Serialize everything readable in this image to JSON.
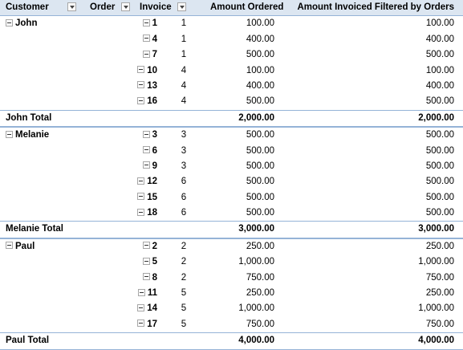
{
  "headers": {
    "customer": "Customer",
    "order": "Order",
    "invoice": "Invoice",
    "amount_ordered": "Amount Ordered",
    "amount_invoiced": "Amount Invoiced Filtered by Orders"
  },
  "groups": [
    {
      "customer": "John",
      "rows": [
        {
          "order": "1",
          "invoice": "1",
          "amount_ordered": "100.00",
          "amount_invoiced": "100.00"
        },
        {
          "order": "4",
          "invoice": "1",
          "amount_ordered": "400.00",
          "amount_invoiced": "400.00"
        },
        {
          "order": "7",
          "invoice": "1",
          "amount_ordered": "500.00",
          "amount_invoiced": "500.00"
        },
        {
          "order": "10",
          "invoice": "4",
          "amount_ordered": "100.00",
          "amount_invoiced": "100.00"
        },
        {
          "order": "13",
          "invoice": "4",
          "amount_ordered": "400.00",
          "amount_invoiced": "400.00"
        },
        {
          "order": "16",
          "invoice": "4",
          "amount_ordered": "500.00",
          "amount_invoiced": "500.00"
        }
      ],
      "total_label": "John Total",
      "total_ordered": "2,000.00",
      "total_invoiced": "2,000.00"
    },
    {
      "customer": "Melanie",
      "rows": [
        {
          "order": "3",
          "invoice": "3",
          "amount_ordered": "500.00",
          "amount_invoiced": "500.00"
        },
        {
          "order": "6",
          "invoice": "3",
          "amount_ordered": "500.00",
          "amount_invoiced": "500.00"
        },
        {
          "order": "9",
          "invoice": "3",
          "amount_ordered": "500.00",
          "amount_invoiced": "500.00"
        },
        {
          "order": "12",
          "invoice": "6",
          "amount_ordered": "500.00",
          "amount_invoiced": "500.00"
        },
        {
          "order": "15",
          "invoice": "6",
          "amount_ordered": "500.00",
          "amount_invoiced": "500.00"
        },
        {
          "order": "18",
          "invoice": "6",
          "amount_ordered": "500.00",
          "amount_invoiced": "500.00"
        }
      ],
      "total_label": "Melanie Total",
      "total_ordered": "3,000.00",
      "total_invoiced": "3,000.00"
    },
    {
      "customer": "Paul",
      "rows": [
        {
          "order": "2",
          "invoice": "2",
          "amount_ordered": "250.00",
          "amount_invoiced": "250.00"
        },
        {
          "order": "5",
          "invoice": "2",
          "amount_ordered": "1,000.00",
          "amount_invoiced": "1,000.00"
        },
        {
          "order": "8",
          "invoice": "2",
          "amount_ordered": "750.00",
          "amount_invoiced": "750.00"
        },
        {
          "order": "11",
          "invoice": "5",
          "amount_ordered": "250.00",
          "amount_invoiced": "250.00"
        },
        {
          "order": "14",
          "invoice": "5",
          "amount_ordered": "1,000.00",
          "amount_invoiced": "1,000.00"
        },
        {
          "order": "17",
          "invoice": "5",
          "amount_ordered": "750.00",
          "amount_invoiced": "750.00"
        }
      ],
      "total_label": "Paul Total",
      "total_ordered": "4,000.00",
      "total_invoiced": "4,000.00"
    }
  ]
}
